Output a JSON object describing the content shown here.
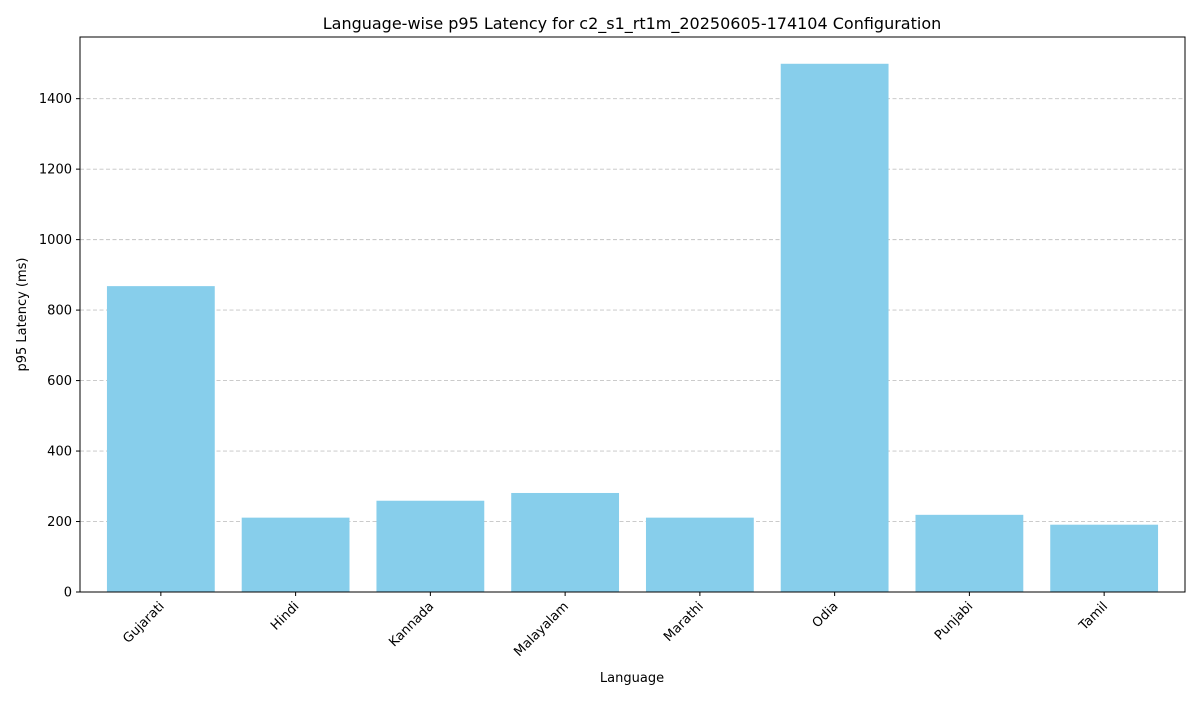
{
  "chart_data": {
    "type": "bar",
    "title": "Language-wise p95 Latency for c2_s1_rt1m_20250605-174104 Configuration",
    "xlabel": "Language",
    "ylabel": "p95 Latency (ms)",
    "categories": [
      "Gujarati",
      "Hindi",
      "Kannada",
      "Malayalam",
      "Marathi",
      "Odia",
      "Punjabi",
      "Tamil"
    ],
    "values": [
      868,
      211,
      259,
      281,
      211,
      1499,
      219,
      191
    ],
    "ylim": [
      0,
      1575
    ],
    "yticks": [
      0,
      200,
      400,
      600,
      800,
      1000,
      1200,
      1400
    ],
    "bar_color": "#87CEEB",
    "grid": "y-dashed"
  }
}
